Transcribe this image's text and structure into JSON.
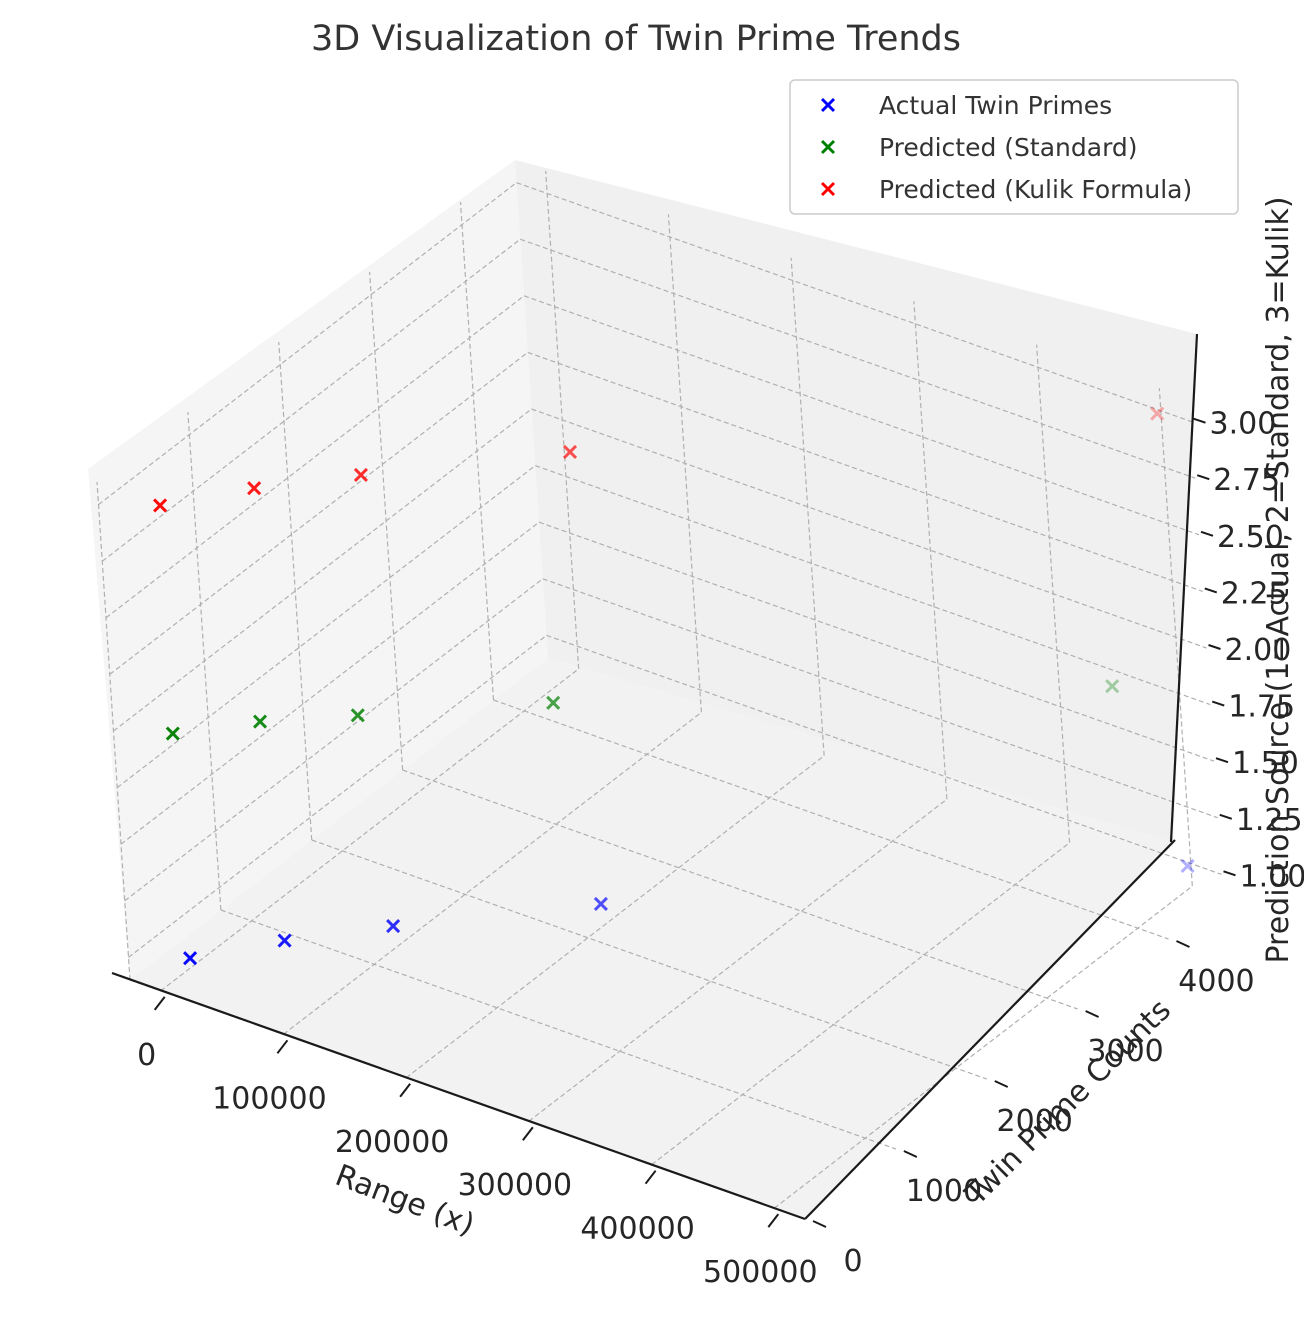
{
  "chart_data": {
    "type": "scatter",
    "projection": "3d",
    "title": "3D Visualization of Twin Prime Trends",
    "xlabel": "Range (x)",
    "ylabel": "Twin Prime Counts",
    "zlabel": "Prediction Source (1=Actual, 2=Standard, 3=Kulik)",
    "x_ticks": [
      "0",
      "100000",
      "200000",
      "300000",
      "400000",
      "500000"
    ],
    "y_ticks": [
      "0",
      "1000",
      "2000",
      "3000",
      "4000"
    ],
    "z_ticks": [
      "1.00",
      "1.25",
      "1.50",
      "1.75",
      "2.00",
      "2.25",
      "2.50",
      "2.75",
      "3.00"
    ],
    "xlim": [
      -25000,
      525000
    ],
    "ylim": [
      0,
      4600
    ],
    "zlim": [
      0.9,
      3.1
    ],
    "grid": true,
    "marker": "x",
    "legend_position": "top-right",
    "series": [
      {
        "name": "Actual Twin Primes",
        "color": "#0000ff",
        "x": [
          10000,
          50000,
          100000,
          200000,
          500000
        ],
        "y": [
          205,
          705,
          1224,
          2160,
          4565
        ],
        "z": [
          1,
          1,
          1,
          1,
          1
        ]
      },
      {
        "name": "Predicted (Standard)",
        "color": "#008000",
        "x": [
          10000,
          50000,
          100000,
          200000,
          500000
        ],
        "y": [
          180,
          600,
          1000,
          1800,
          3900
        ],
        "z": [
          2,
          2,
          2,
          2,
          2
        ]
      },
      {
        "name": "Predicted (Kulik Formula)",
        "color": "#ff0000",
        "x": [
          10000,
          50000,
          100000,
          200000,
          500000
        ],
        "y": [
          205,
          700,
          1200,
          2150,
          4560
        ],
        "z": [
          3,
          3,
          3,
          3,
          3
        ]
      }
    ]
  }
}
